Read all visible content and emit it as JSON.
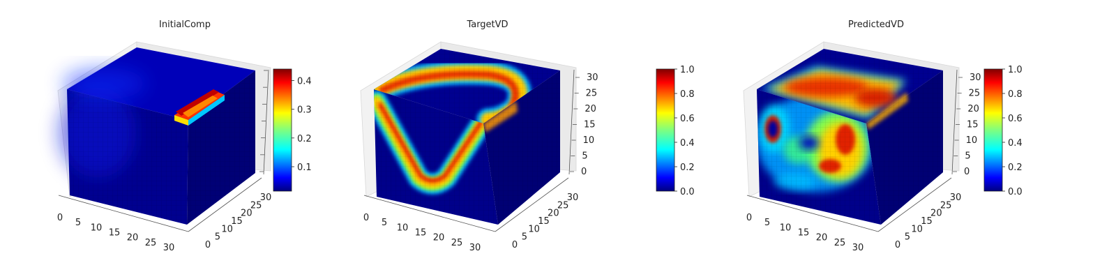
{
  "chart_data": [
    {
      "type": "3d-voxel",
      "title": "InitialComp",
      "x_ticks": [
        "0",
        "5",
        "10",
        "15",
        "20",
        "25",
        "30"
      ],
      "y_ticks": [
        "0",
        "5",
        "10",
        "15",
        "20",
        "25",
        "30"
      ],
      "z_ticks": [
        "",
        "",
        "",
        "",
        "",
        "",
        ""
      ],
      "colormap": "jet",
      "colorbar": {
        "min": 0.015,
        "max": 0.44,
        "ticks": [
          0.1,
          0.2,
          0.3,
          0.4
        ],
        "tick_labels": [
          "0.1",
          "0.2",
          "0.3",
          "0.4"
        ]
      },
      "features": [
        {
          "shape": "bar",
          "value": 0.42,
          "description": "narrow block near top-right of front face, x≈25–32, z≈28–31"
        }
      ],
      "base_value": 0.02
    },
    {
      "type": "3d-voxel",
      "title": "TargetVD",
      "x_ticks": [
        "0",
        "5",
        "10",
        "15",
        "20",
        "25",
        "30"
      ],
      "y_ticks": [
        "0",
        "5",
        "10",
        "15",
        "20",
        "25",
        "30"
      ],
      "z_ticks": [
        "0",
        "5",
        "10",
        "15",
        "20",
        "25",
        "30"
      ],
      "colormap": "jet",
      "colorbar": {
        "min": 0.0,
        "max": 1.0,
        "ticks": [
          0.0,
          0.2,
          0.4,
          0.6,
          0.8,
          1.0
        ],
        "tick_labels": [
          "0.0",
          "0.2",
          "0.4",
          "0.6",
          "0.8",
          "1.0"
        ]
      },
      "features": [
        {
          "shape": "v-band",
          "value": 0.95,
          "description": "V-shaped high-density band across front face"
        },
        {
          "shape": "top-arc",
          "value": 0.9,
          "description": "arc along top face from left edge to right side"
        }
      ],
      "base_value": 0.0
    },
    {
      "type": "3d-voxel",
      "title": "PredictedVD",
      "x_ticks": [
        "0",
        "5",
        "10",
        "15",
        "20",
        "25",
        "30"
      ],
      "y_ticks": [
        "0",
        "5",
        "10",
        "15",
        "20",
        "25",
        "30"
      ],
      "z_ticks": [
        "0",
        "5",
        "10",
        "15",
        "20",
        "25",
        "30"
      ],
      "colormap": "jet",
      "colorbar": {
        "min": 0.0,
        "max": 1.0,
        "ticks": [
          0.0,
          0.2,
          0.4,
          0.6,
          0.8,
          1.0
        ],
        "tick_labels": [
          "0.0",
          "0.2",
          "0.4",
          "0.6",
          "0.8",
          "1.0"
        ]
      },
      "features": [
        {
          "shape": "blobs",
          "value": 0.9,
          "description": "irregular high-density blobs on front face"
        },
        {
          "shape": "top-slab",
          "value": 0.9,
          "description": "dense slab along top face"
        }
      ],
      "base_value": 0.0
    }
  ]
}
